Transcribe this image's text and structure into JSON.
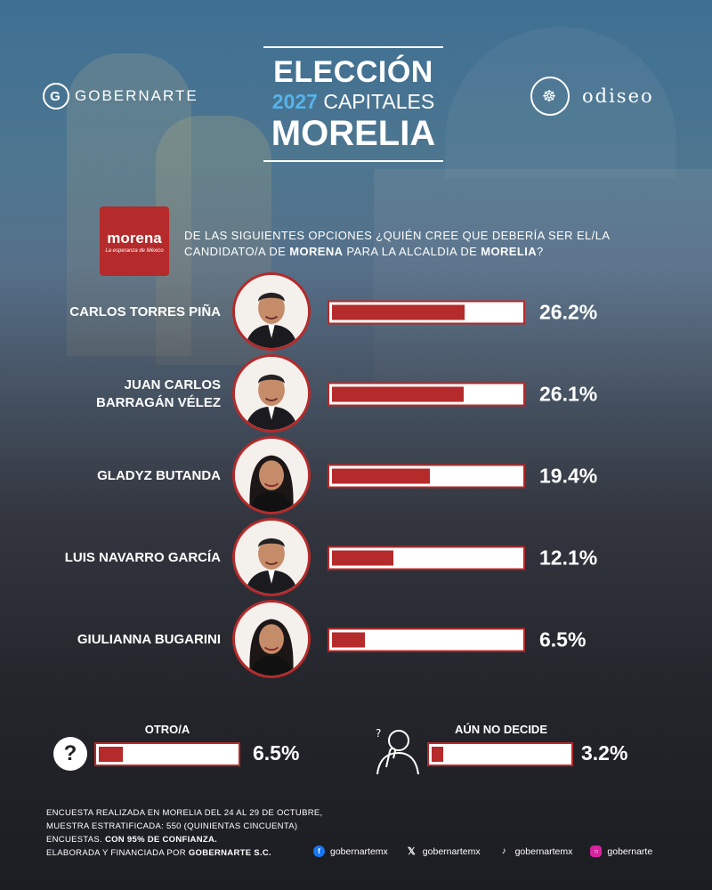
{
  "brand_left": "GOBERNARTE",
  "brand_left_initial": "G",
  "brand_right": "odiseo",
  "title": {
    "line1": "ELECCIÓN",
    "year": "2027",
    "line2_rest": "CAPITALES",
    "line3": "MORELIA"
  },
  "party": {
    "name": "morena",
    "tagline": "La esperanza de México"
  },
  "question": {
    "part1": "DE LAS SIGUIENTES OPCIONES ¿QUIÉN CREE QUE DEBERÍA SER EL/LA CANDIDATO/A DE ",
    "party_bold": "MORENA",
    "part2": " PARA LA ALCALDIA DE ",
    "city_bold": "MORELIA",
    "part3": "?"
  },
  "colors": {
    "accent": "#b52a2a",
    "year_blue": "#57b3ea"
  },
  "chart_data": {
    "type": "bar",
    "categories": [
      "CARLOS TORRES PIÑA",
      "JUAN CARLOS BARRAGÁN VÉLEZ",
      "GLADYZ BUTANDA",
      "LUIS NAVARRO GARCÍA",
      "GIULIANNA BUGARINI",
      "OTRO/A",
      "AÚN NO DECIDE"
    ],
    "values": [
      26.2,
      26.1,
      19.4,
      12.1,
      6.5,
      6.5,
      3.2
    ],
    "labels": [
      "26.2%",
      "26.1%",
      "19.4%",
      "12.1%",
      "6.5%",
      "6.5%",
      "3.2%"
    ],
    "ylim": [
      0,
      38
    ]
  },
  "candidates": [
    {
      "name_line1": "CARLOS TORRES PIÑA",
      "name_line2": "",
      "pct": "26.2%",
      "value": 26.2,
      "photo": "man-portrait"
    },
    {
      "name_line1": "JUAN CARLOS",
      "name_line2": "BARRAGÁN VÉLEZ",
      "pct": "26.1%",
      "value": 26.1,
      "photo": "man-portrait"
    },
    {
      "name_line1": "GLADYZ BUTANDA",
      "name_line2": "",
      "pct": "19.4%",
      "value": 19.4,
      "photo": "woman-portrait"
    },
    {
      "name_line1": "LUIS NAVARRO GARCÍA",
      "name_line2": "",
      "pct": "12.1%",
      "value": 12.1,
      "photo": "man-portrait"
    },
    {
      "name_line1": "GIULIANNA BUGARINI",
      "name_line2": "",
      "pct": "6.5%",
      "value": 6.5,
      "photo": "woman-portrait"
    }
  ],
  "other": {
    "label": "OTRO/A",
    "pct": "6.5%",
    "value": 6.5,
    "icon": "question-mark-icon",
    "glyph": "?"
  },
  "undecided": {
    "label": "AÚN NO DECIDE",
    "pct": "3.2%",
    "value": 3.2,
    "icon": "thinking-person-icon"
  },
  "footnote": {
    "line1": "ENCUESTA REALIZADA EN MORELIA DEL 24 AL 29 DE OCTUBRE,",
    "line2": "MUESTRA ESTRATIFICADA: 550 (QUINIENTAS CINCUENTA)",
    "line3a": "ENCUESTAS. ",
    "line3b": "CON 95% DE CONFIANZA.",
    "line4a": "ELABORADA Y FINANCIADA POR ",
    "line4b": "GOBERNARTE S.C."
  },
  "socials": [
    {
      "icon": "facebook-icon",
      "handle": "gobernartemx"
    },
    {
      "icon": "x-icon",
      "handle": "gobernartemx"
    },
    {
      "icon": "tiktok-icon",
      "handle": "gobernartemx"
    },
    {
      "icon": "instagram-icon",
      "handle": "gobernarte"
    }
  ]
}
